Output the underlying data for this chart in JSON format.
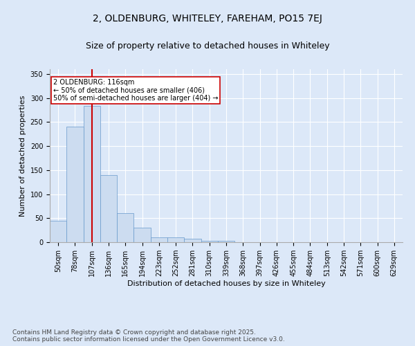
{
  "title": "2, OLDENBURG, WHITELEY, FAREHAM, PO15 7EJ",
  "subtitle": "Size of property relative to detached houses in Whiteley",
  "xlabel": "Distribution of detached houses by size in Whiteley",
  "ylabel": "Number of detached properties",
  "categories": [
    "50sqm",
    "78sqm",
    "107sqm",
    "136sqm",
    "165sqm",
    "194sqm",
    "223sqm",
    "252sqm",
    "281sqm",
    "310sqm",
    "339sqm",
    "368sqm",
    "397sqm",
    "426sqm",
    "455sqm",
    "484sqm",
    "513sqm",
    "542sqm",
    "571sqm",
    "600sqm",
    "629sqm"
  ],
  "values": [
    45,
    240,
    283,
    140,
    60,
    30,
    10,
    10,
    7,
    3,
    3,
    0,
    0,
    0,
    0,
    0,
    0,
    0,
    0,
    0,
    0
  ],
  "bar_color": "#ccdcf0",
  "bar_edge_color": "#6699cc",
  "vline_x": 2,
  "vline_color": "#cc0000",
  "annotation_text": "2 OLDENBURG: 116sqm\n← 50% of detached houses are smaller (406)\n50% of semi-detached houses are larger (404) →",
  "annotation_box_color": "#ffffff",
  "annotation_box_edge_color": "#cc0000",
  "ylim": [
    0,
    360
  ],
  "yticks": [
    0,
    50,
    100,
    150,
    200,
    250,
    300,
    350
  ],
  "background_color": "#dce8f8",
  "plot_bg_color": "#dce8f8",
  "title_fontsize": 10,
  "subtitle_fontsize": 9,
  "tick_fontsize": 7,
  "ylabel_fontsize": 8,
  "xlabel_fontsize": 8,
  "footnote": "Contains HM Land Registry data © Crown copyright and database right 2025.\nContains public sector information licensed under the Open Government Licence v3.0.",
  "footnote_fontsize": 6.5
}
